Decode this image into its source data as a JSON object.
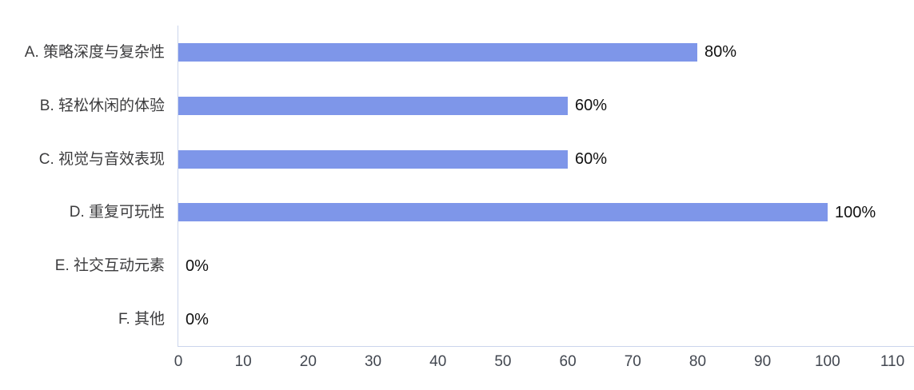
{
  "chart_data": {
    "type": "bar",
    "orientation": "horizontal",
    "title": "",
    "xlabel": "",
    "ylabel": "",
    "categories": [
      "A. 策略深度与复杂性",
      "B. 轻松休闲的体验",
      "C. 视觉与音效表现",
      "D. 重复可玩性",
      "E. 社交互动元素",
      "F. 其他"
    ],
    "values": [
      80,
      60,
      60,
      100,
      0,
      0
    ],
    "value_labels": [
      "80%",
      "60%",
      "60%",
      "100%",
      "0%",
      "0%"
    ],
    "x_ticks": [
      0,
      10,
      20,
      30,
      40,
      50,
      60,
      70,
      80,
      90,
      100,
      110
    ],
    "xlim": [
      0,
      110
    ],
    "grid": false,
    "legend": null,
    "colors": {
      "bar": "#7E96E9",
      "axis_line": "#CBD5EC",
      "tick_label": "#424750",
      "category_label": "#3C3C3E",
      "data_label": "#111111",
      "background": "#FFFFFF"
    }
  }
}
